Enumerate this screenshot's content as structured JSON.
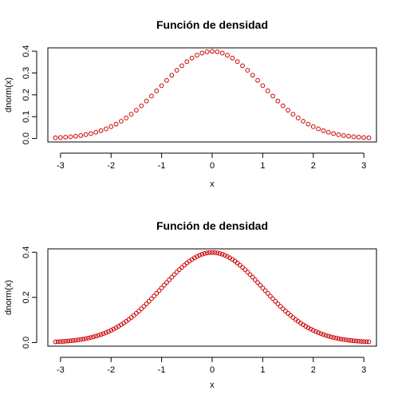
{
  "chart_data": [
    {
      "type": "scatter",
      "title": "Función de densidad",
      "xlabel": "x",
      "ylabel": "dnorm(x)",
      "xlim": [
        -3.25,
        3.25
      ],
      "ylim": [
        -0.016,
        0.415
      ],
      "x_ticks": [
        -3,
        -2,
        -1,
        0,
        1,
        2,
        3
      ],
      "x_tick_labels": [
        "-3",
        "-2",
        "-1",
        "0",
        "1",
        "2",
        "3"
      ],
      "y_ticks": [
        0,
        0.1,
        0.2,
        0.3,
        0.4
      ],
      "y_tick_labels": [
        "0.0",
        "0.1",
        "0.2",
        "0.3",
        "0.4"
      ],
      "grid": false,
      "point_color": "#cc0000",
      "series": [
        {
          "x": [
            -3.1,
            -3.0,
            -2.9,
            -2.8,
            -2.7,
            -2.6,
            -2.5,
            -2.4,
            -2.3,
            -2.2,
            -2.1,
            -2.0,
            -1.9,
            -1.8,
            -1.7,
            -1.6,
            -1.5,
            -1.4,
            -1.3,
            -1.2,
            -1.1,
            -1.0,
            -0.9,
            -0.8,
            -0.7,
            -0.6,
            -0.5,
            -0.4,
            -0.3,
            -0.2,
            -0.1,
            0.0,
            0.1,
            0.2,
            0.3,
            0.4,
            0.5,
            0.6,
            0.7,
            0.8,
            0.9,
            1.0,
            1.1,
            1.2,
            1.3,
            1.4,
            1.5,
            1.6,
            1.7,
            1.8,
            1.9,
            2.0,
            2.1,
            2.2,
            2.3,
            2.4,
            2.5,
            2.6,
            2.7,
            2.8,
            2.9,
            3.0,
            3.1
          ],
          "y": [
            0.0033,
            0.0044,
            0.006,
            0.0079,
            0.0104,
            0.0136,
            0.0175,
            0.0224,
            0.0283,
            0.0355,
            0.044,
            0.054,
            0.0656,
            0.079,
            0.094,
            0.1109,
            0.1295,
            0.1497,
            0.1714,
            0.1942,
            0.2179,
            0.242,
            0.2661,
            0.2897,
            0.3123,
            0.3332,
            0.3521,
            0.3683,
            0.3814,
            0.391,
            0.397,
            0.3989,
            0.397,
            0.391,
            0.3814,
            0.3683,
            0.3521,
            0.3332,
            0.3123,
            0.2897,
            0.2661,
            0.242,
            0.2179,
            0.1942,
            0.1714,
            0.1497,
            0.1295,
            0.1109,
            0.094,
            0.079,
            0.0656,
            0.054,
            0.044,
            0.0355,
            0.0283,
            0.0224,
            0.0175,
            0.0136,
            0.0104,
            0.0079,
            0.006,
            0.0044,
            0.0033
          ]
        }
      ]
    },
    {
      "type": "scatter",
      "title": "Función de densidad",
      "xlabel": "x",
      "ylabel": "dnorm(x)",
      "xlim": [
        -3.25,
        3.25
      ],
      "ylim": [
        -0.016,
        0.415
      ],
      "x_ticks": [
        -3,
        -2,
        -1,
        0,
        1,
        2,
        3
      ],
      "x_tick_labels": [
        "-3",
        "-2",
        "-1",
        "0",
        "1",
        "2",
        "3"
      ],
      "y_ticks": [
        0,
        0.2,
        0.4
      ],
      "y_tick_labels": [
        "0.0",
        "0.2",
        "0.4"
      ],
      "grid": false,
      "point_color": "#cc0000",
      "series": [
        {
          "x": [
            -3.1,
            -3.05,
            -3.0,
            -2.95,
            -2.9,
            -2.85,
            -2.8,
            -2.75,
            -2.7,
            -2.65,
            -2.6,
            -2.55,
            -2.5,
            -2.45,
            -2.4,
            -2.35,
            -2.3,
            -2.25,
            -2.2,
            -2.15,
            -2.1,
            -2.05,
            -2.0,
            -1.95,
            -1.9,
            -1.85,
            -1.8,
            -1.75,
            -1.7,
            -1.65,
            -1.6,
            -1.55,
            -1.5,
            -1.45,
            -1.4,
            -1.35,
            -1.3,
            -1.25,
            -1.2,
            -1.15,
            -1.1,
            -1.05,
            -1.0,
            -0.95,
            -0.9,
            -0.85,
            -0.8,
            -0.75,
            -0.7,
            -0.65,
            -0.6,
            -0.55,
            -0.5,
            -0.45,
            -0.4,
            -0.35,
            -0.3,
            -0.25,
            -0.2,
            -0.15,
            -0.1,
            -0.05,
            0.0,
            0.05,
            0.1,
            0.15,
            0.2,
            0.25,
            0.3,
            0.35,
            0.4,
            0.45,
            0.5,
            0.55,
            0.6,
            0.65,
            0.7,
            0.75,
            0.8,
            0.85,
            0.9,
            0.95,
            1.0,
            1.05,
            1.1,
            1.15,
            1.2,
            1.25,
            1.3,
            1.35,
            1.4,
            1.45,
            1.5,
            1.55,
            1.6,
            1.65,
            1.7,
            1.75,
            1.8,
            1.85,
            1.9,
            1.95,
            2.0,
            2.05,
            2.1,
            2.15,
            2.2,
            2.25,
            2.3,
            2.35,
            2.4,
            2.45,
            2.5,
            2.55,
            2.6,
            2.65,
            2.7,
            2.75,
            2.8,
            2.85,
            2.9,
            2.95,
            3.0,
            3.05,
            3.1
          ],
          "y": [
            0.0033,
            0.0038,
            0.0044,
            0.0051,
            0.006,
            0.0069,
            0.0079,
            0.0091,
            0.0104,
            0.0119,
            0.0136,
            0.0154,
            0.0175,
            0.0198,
            0.0224,
            0.0252,
            0.0283,
            0.0317,
            0.0355,
            0.0396,
            0.044,
            0.0488,
            0.054,
            0.0596,
            0.0656,
            0.072,
            0.079,
            0.0863,
            0.094,
            0.1023,
            0.1109,
            0.12,
            0.1295,
            0.1394,
            0.1497,
            0.1604,
            0.1714,
            0.1826,
            0.1942,
            0.2059,
            0.2179,
            0.2299,
            0.242,
            0.2541,
            0.2661,
            0.278,
            0.2897,
            0.3011,
            0.3123,
            0.323,
            0.3332,
            0.3429,
            0.3521,
            0.3605,
            0.3683,
            0.3752,
            0.3814,
            0.3867,
            0.391,
            0.3945,
            0.397,
            0.3984,
            0.3989,
            0.3984,
            0.397,
            0.3945,
            0.391,
            0.3867,
            0.3814,
            0.3752,
            0.3683,
            0.3605,
            0.3521,
            0.3429,
            0.3332,
            0.323,
            0.3123,
            0.3011,
            0.2897,
            0.278,
            0.2661,
            0.2541,
            0.242,
            0.2299,
            0.2179,
            0.2059,
            0.1942,
            0.1826,
            0.1714,
            0.1604,
            0.1497,
            0.1394,
            0.1295,
            0.12,
            0.1109,
            0.1023,
            0.094,
            0.0863,
            0.079,
            0.072,
            0.0656,
            0.0596,
            0.054,
            0.0488,
            0.044,
            0.0396,
            0.0355,
            0.0317,
            0.0283,
            0.0252,
            0.0224,
            0.0198,
            0.0175,
            0.0154,
            0.0136,
            0.0119,
            0.0104,
            0.0091,
            0.0079,
            0.0069,
            0.006,
            0.0051,
            0.0044,
            0.0038,
            0.0033
          ]
        }
      ]
    }
  ]
}
